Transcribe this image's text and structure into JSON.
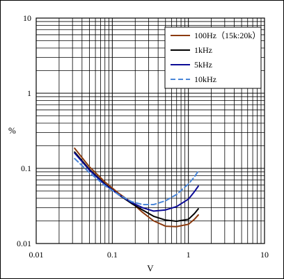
{
  "chart_data": {
    "type": "line",
    "title": "",
    "xlabel": "V",
    "ylabel": "%",
    "x_scale": "log",
    "y_scale": "log",
    "xlim": [
      0.01,
      10
    ],
    "ylim": [
      0.01,
      10
    ],
    "x_ticks": [
      "0.01",
      "0.1",
      "1",
      "10"
    ],
    "y_ticks": [
      "0.01",
      "0.1",
      "1",
      "10"
    ],
    "grid": true,
    "legend": "top-right",
    "series": [
      {
        "name": "100Hz（15k:20k）",
        "color": "#8B3A0E",
        "dash": false,
        "points": [
          [
            0.032,
            0.185
          ],
          [
            0.05,
            0.105
          ],
          [
            0.08,
            0.066
          ],
          [
            0.12,
            0.047
          ],
          [
            0.18,
            0.035
          ],
          [
            0.25,
            0.026
          ],
          [
            0.35,
            0.02
          ],
          [
            0.5,
            0.017
          ],
          [
            0.7,
            0.0168
          ],
          [
            1.0,
            0.018
          ],
          [
            1.2,
            0.021
          ],
          [
            1.35,
            0.024
          ]
        ]
      },
      {
        "name": "1kHz",
        "color": "#000000",
        "dash": false,
        "points": [
          [
            0.032,
            0.165
          ],
          [
            0.05,
            0.097
          ],
          [
            0.08,
            0.062
          ],
          [
            0.12,
            0.045
          ],
          [
            0.18,
            0.034
          ],
          [
            0.25,
            0.028
          ],
          [
            0.35,
            0.023
          ],
          [
            0.5,
            0.0205
          ],
          [
            0.7,
            0.0198
          ],
          [
            1.0,
            0.021
          ],
          [
            1.2,
            0.025
          ],
          [
            1.35,
            0.029
          ]
        ]
      },
      {
        "name": "5kHz",
        "color": "#0A0A96",
        "dash": false,
        "points": [
          [
            0.032,
            0.16
          ],
          [
            0.05,
            0.095
          ],
          [
            0.08,
            0.061
          ],
          [
            0.12,
            0.045
          ],
          [
            0.18,
            0.035
          ],
          [
            0.25,
            0.03
          ],
          [
            0.35,
            0.027
          ],
          [
            0.5,
            0.028
          ],
          [
            0.7,
            0.031
          ],
          [
            1.0,
            0.039
          ],
          [
            1.2,
            0.049
          ],
          [
            1.35,
            0.058
          ]
        ]
      },
      {
        "name": "10kHz",
        "color": "#4A86D8",
        "dash": true,
        "points": [
          [
            0.032,
            0.135
          ],
          [
            0.05,
            0.088
          ],
          [
            0.08,
            0.059
          ],
          [
            0.12,
            0.045
          ],
          [
            0.18,
            0.036
          ],
          [
            0.25,
            0.033
          ],
          [
            0.35,
            0.033
          ],
          [
            0.5,
            0.037
          ],
          [
            0.7,
            0.045
          ],
          [
            1.0,
            0.062
          ],
          [
            1.2,
            0.077
          ],
          [
            1.35,
            0.092
          ]
        ]
      }
    ]
  }
}
